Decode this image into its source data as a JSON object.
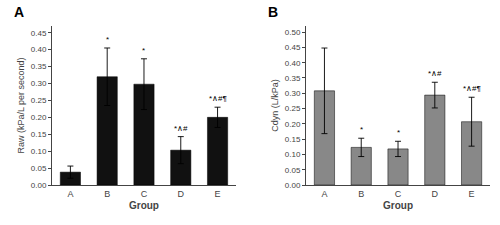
{
  "chart_data": [
    {
      "type": "bar",
      "title": "A",
      "xlabel": "Group",
      "ylabel": "Raw (kPa/L per second)",
      "categories": [
        "A",
        "B",
        "C",
        "D",
        "E"
      ],
      "values": [
        0.038,
        0.32,
        0.298,
        0.103,
        0.2
      ],
      "errors": [
        0.018,
        0.085,
        0.075,
        0.04,
        0.03
      ],
      "color": "#111111",
      "ylim": [
        0,
        0.47
      ],
      "yticks": [
        {
          "value": 0.0,
          "label": "0.00"
        },
        0.05,
        {
          "value": 0.1,
          "label": "0.10"
        },
        0.15,
        {
          "value": 0.2,
          "label": "0.20"
        },
        0.25,
        {
          "value": 0.3,
          "label": "0.30"
        },
        0.35,
        {
          "value": 0.4,
          "label": "0.40"
        },
        0.45
      ],
      "annotations": [
        null,
        "*",
        "*",
        "*∧#",
        "*∧#¶"
      ],
      "grid": false
    },
    {
      "type": "bar",
      "title": "B",
      "xlabel": "Group",
      "ylabel": "Cdyn (L/kPa)",
      "categories": [
        "A",
        "B",
        "C",
        "D",
        "E"
      ],
      "values": [
        0.308,
        0.123,
        0.118,
        0.294,
        0.207
      ],
      "errors": [
        0.14,
        0.03,
        0.025,
        0.042,
        0.08
      ],
      "color": "#888888",
      "ylim": [
        0,
        0.52
      ],
      "yticks": [
        {
          "value": 0.0,
          "label": "0.00"
        },
        0.05,
        {
          "value": 0.1,
          "label": "0.10"
        },
        0.15,
        {
          "value": 0.2,
          "label": "0.20"
        },
        0.25,
        {
          "value": 0.3,
          "label": "0.30"
        },
        0.35,
        {
          "value": 0.4,
          "label": "0.40"
        },
        0.45,
        {
          "value": 0.5,
          "label": "0.50"
        }
      ],
      "annotations": [
        null,
        "*",
        "*",
        "*∧#",
        "*∧#¶"
      ],
      "grid": false
    }
  ]
}
